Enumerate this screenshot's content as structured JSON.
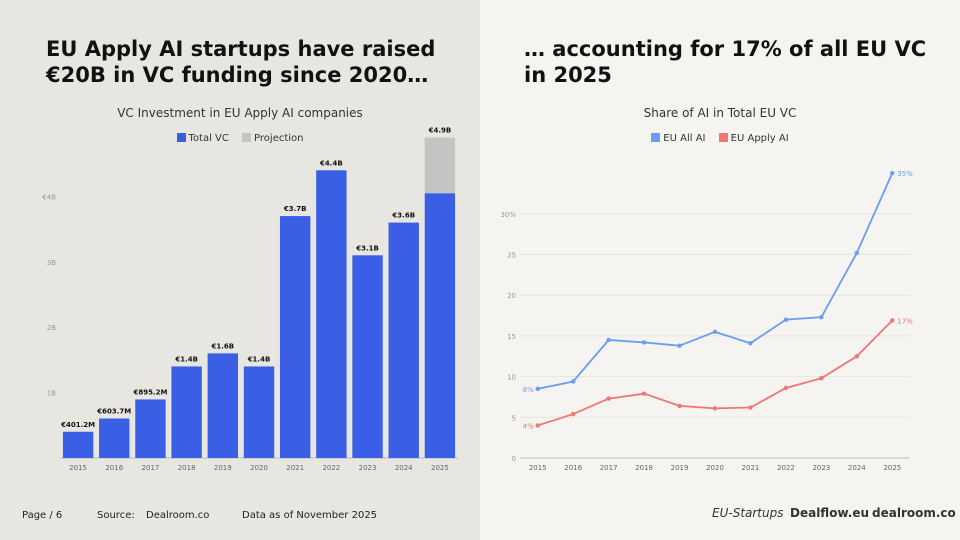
{
  "left": {
    "headline": "EU Apply AI startups have raised €20B in VC funding since 2020…",
    "chart_title": "VC Investment in EU Apply AI companies",
    "legend": [
      "Total VC",
      "Projection"
    ]
  },
  "right": {
    "headline": "… accounting for 17% of all EU VC in 2025",
    "chart_title": "Share of AI in Total EU VC",
    "legend": [
      "EU All AI",
      "EU Apply AI"
    ]
  },
  "footer": {
    "page": "Page / 6",
    "source_label": "Source:",
    "source": "Dealroom.co",
    "data_as_of": "Data as of November 2025"
  },
  "logos": [
    "EU-Startups",
    "Dealflow.eu",
    "dealroom.co"
  ],
  "colors": {
    "blue": "#3a5fe5",
    "projection": "#c4c4c4",
    "line_blue": "#6b9df0",
    "line_red": "#f07575"
  },
  "chart_data": [
    {
      "type": "bar",
      "title": "VC Investment in EU Apply AI companies",
      "categories": [
        "2015",
        "2016",
        "2017",
        "2018",
        "2019",
        "2020",
        "2021",
        "2022",
        "2023",
        "2024",
        "2025"
      ],
      "series": [
        {
          "name": "Total VC",
          "values": [
            0.4012,
            0.6037,
            0.8952,
            1.4,
            1.6,
            1.4,
            3.7,
            4.4,
            3.1,
            3.6,
            4.05
          ]
        },
        {
          "name": "Projection",
          "values": [
            0,
            0,
            0,
            0,
            0,
            0,
            0,
            0,
            0,
            0,
            0.85
          ]
        }
      ],
      "labels": [
        "€401.2M",
        "€603.7M",
        "€895.2M",
        "€1.4B",
        "€1.6B",
        "€1.4B",
        "€3.7B",
        "€4.4B",
        "€3.1B",
        "€3.6B",
        "€4.9B"
      ],
      "yticks": [
        1,
        2,
        3,
        4
      ],
      "ytick_labels": [
        "1B",
        "2B",
        "3B",
        "€4B"
      ],
      "ylim": [
        0,
        5.2
      ]
    },
    {
      "type": "line",
      "title": "Share of AI in Total EU VC",
      "x": [
        "2015",
        "2016",
        "2017",
        "2018",
        "2019",
        "2020",
        "2021",
        "2022",
        "2023",
        "2024",
        "2025"
      ],
      "series": [
        {
          "name": "EU All AI",
          "values": [
            8.5,
            9.4,
            14.5,
            14.2,
            13.8,
            15.5,
            14.1,
            17.0,
            17.3,
            25.2,
            35.0
          ]
        },
        {
          "name": "EU Apply AI",
          "values": [
            4.0,
            5.4,
            7.3,
            7.9,
            6.4,
            6.1,
            6.2,
            8.6,
            9.8,
            12.5,
            16.9
          ]
        }
      ],
      "first_labels": [
        "8%",
        "4%"
      ],
      "last_labels": [
        "35%",
        "17%"
      ],
      "yticks": [
        0,
        5,
        10,
        15,
        20,
        25,
        30
      ],
      "ytick_labels": [
        "0",
        "5",
        "10",
        "15",
        "20",
        "25",
        "30%"
      ],
      "ylim": [
        0,
        36
      ]
    }
  ]
}
